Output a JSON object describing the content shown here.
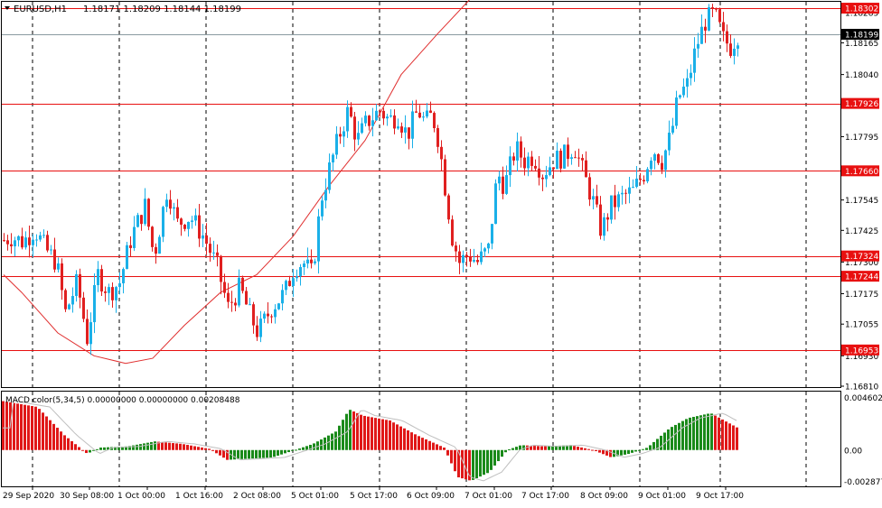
{
  "header": {
    "symbol": "EURUSD,H1",
    "ohlc": "1.18171 1.18209 1.18144 1.18199"
  },
  "indicator": {
    "label": "MACD color(5,34,5) 0.00000000 0.00000000 0.00208488"
  },
  "colors": {
    "bull": "#1ab0e8",
    "bear": "#e02020",
    "ma": "#e03030",
    "level_line": "#e81010",
    "level_tag": "#e81010",
    "macd_up": "#1a8a1a",
    "macd_down": "#e01818",
    "signal": "#bfbfbf",
    "grid": "#000000",
    "frame": "#000000",
    "current_tag": "#000000"
  },
  "price_labels": [
    "1.18285",
    "1.18165",
    "1.18040",
    "1.17795",
    "1.17545",
    "1.17425",
    "1.17300",
    "1.17175",
    "1.17055",
    "1.16930",
    "1.16810"
  ],
  "level_tags": [
    "1.18302",
    "1.17926",
    "1.17660",
    "1.17324",
    "1.17244",
    "1.16953"
  ],
  "current_price": "1.18199",
  "macd_labels": [
    "0.0046026",
    "0.00",
    "-0.002877"
  ],
  "time_labels": [
    "29 Sep 2020",
    "30 Sep 08:00",
    "1 Oct 00:00",
    "1 Oct 16:00",
    "2 Oct 08:00",
    "5 Oct 01:00",
    "5 Oct 17:00",
    "6 Oct 09:00",
    "7 Oct 01:00",
    "7 Oct 17:00",
    "8 Oct 09:00",
    "9 Oct 01:00",
    "9 Oct 17:00"
  ],
  "chart_data": {
    "type": "candlestick",
    "symbol": "EURUSD",
    "timeframe": "H1",
    "ylim": [
      1.1681,
      1.1832
    ],
    "horizontal_levels": [
      1.18302,
      1.17926,
      1.1766,
      1.17324,
      1.17244,
      1.16953
    ],
    "current_price": 1.18199,
    "moving_average_path": [
      [
        0,
        1.1725
      ],
      [
        20,
        1.1718
      ],
      [
        60,
        1.1702
      ],
      [
        100,
        1.1693
      ],
      [
        135,
        1.169
      ],
      [
        165,
        1.1692
      ],
      [
        200,
        1.1705
      ],
      [
        240,
        1.1718
      ],
      [
        280,
        1.1725
      ],
      [
        320,
        1.174
      ],
      [
        360,
        1.176
      ],
      [
        400,
        1.1778
      ],
      [
        440,
        1.1804
      ],
      [
        480,
        1.182
      ],
      [
        522,
        1.1836
      ]
    ],
    "candles_note": "close path of the series",
    "close_path": [
      [
        0,
        1.1738
      ],
      [
        12,
        1.174
      ],
      [
        25,
        1.1738
      ],
      [
        38,
        1.1743
      ],
      [
        50,
        1.1735
      ],
      [
        62,
        1.173
      ],
      [
        72,
        1.171
      ],
      [
        85,
        1.1722
      ],
      [
        96,
        1.17
      ],
      [
        108,
        1.1725
      ],
      [
        120,
        1.1718
      ],
      [
        132,
        1.1722
      ],
      [
        145,
        1.174
      ],
      [
        160,
        1.1752
      ],
      [
        170,
        1.1732
      ],
      [
        185,
        1.176
      ],
      [
        195,
        1.1745
      ],
      [
        210,
        1.1748
      ],
      [
        225,
        1.174
      ],
      [
        240,
        1.1728
      ],
      [
        252,
        1.1712
      ],
      [
        265,
        1.172
      ],
      [
        275,
        1.171
      ],
      [
        285,
        1.1702
      ],
      [
        300,
        1.1712
      ],
      [
        315,
        1.1718
      ],
      [
        325,
        1.1728
      ],
      [
        335,
        1.173
      ],
      [
        345,
        1.1725
      ],
      [
        355,
        1.1755
      ],
      [
        365,
        1.1768
      ],
      [
        375,
        1.178
      ],
      [
        385,
        1.179
      ],
      [
        395,
        1.1778
      ],
      [
        405,
        1.1785
      ],
      [
        420,
        1.179
      ],
      [
        430,
        1.1786
      ],
      [
        440,
        1.1788
      ],
      [
        450,
        1.178
      ],
      [
        462,
        1.179
      ],
      [
        470,
        1.1785
      ],
      [
        478,
        1.1788
      ],
      [
        485,
        1.1778
      ],
      [
        492,
        1.176
      ],
      [
        500,
        1.174
      ],
      [
        508,
        1.173
      ],
      [
        518,
        1.1733
      ],
      [
        528,
        1.173
      ],
      [
        540,
        1.1735
      ],
      [
        550,
        1.1765
      ],
      [
        558,
        1.176
      ],
      [
        570,
        1.1775
      ],
      [
        580,
        1.177
      ],
      [
        590,
        1.1772
      ],
      [
        600,
        1.1765
      ],
      [
        612,
        1.177
      ],
      [
        625,
        1.1772
      ],
      [
        635,
        1.1776
      ],
      [
        645,
        1.1765
      ],
      [
        655,
        1.1755
      ],
      [
        665,
        1.1742
      ],
      [
        675,
        1.1752
      ],
      [
        690,
        1.1756
      ],
      [
        700,
        1.1758
      ],
      [
        712,
        1.1765
      ],
      [
        722,
        1.1775
      ],
      [
        732,
        1.177
      ],
      [
        742,
        1.178
      ],
      [
        750,
        1.1795
      ],
      [
        760,
        1.18
      ],
      [
        770,
        1.1815
      ],
      [
        780,
        1.1825
      ],
      [
        790,
        1.1828
      ],
      [
        800,
        1.1818
      ],
      [
        808,
        1.1815
      ],
      [
        816,
        1.182
      ]
    ],
    "macd_ylim": [
      -0.002877,
      0.0046026
    ],
    "macd_histogram_shape": "positive 0.0040 at start, falls to ~0 by 30 Sep, small positive through 1 Oct, negative to -0.0008 around 2 Oct, rises to +0.0033 at 5 Oct 17:00, declines to 0 and to -0.0025 at 7 Oct 01:00, small positive 7-8 Oct, slight negative 8 Oct late, rises to +0.0030 on 9 Oct then eases"
  }
}
